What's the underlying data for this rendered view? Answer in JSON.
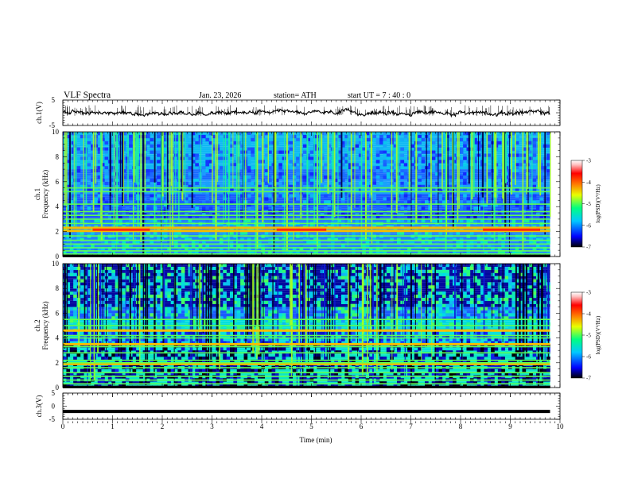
{
  "header": {
    "title": "VLF  Spectra",
    "date": "Jan. 23, 2026",
    "station": "station= ATH",
    "start": "start  UT  =    7 : 40 : 0"
  },
  "chart_data": [
    {
      "type": "line",
      "panel": "ch1-waveform",
      "ylabel": "ch.1(V)",
      "ylim": [
        -5,
        5
      ],
      "yticks": [
        "5",
        "-5"
      ],
      "xlim": [
        0,
        10
      ],
      "description_values": "noisy trace near 0 V with spikes up to ~+2.5 V and down to ~-1 V"
    },
    {
      "type": "heatmap",
      "panel": "ch1-spectrogram",
      "ylabel_top": "ch.1",
      "ylabel": "Frequency  (kHz)",
      "ylim": [
        0,
        10
      ],
      "yticks": [
        "0",
        "2",
        "4",
        "6",
        "8",
        "10"
      ],
      "xlim": [
        0,
        10
      ],
      "colorbar": {
        "label": "log(PSD)(V²/Hz)",
        "range": [
          -7,
          -3
        ],
        "ticks": [
          "-3",
          "-4",
          "-5",
          "-6",
          "-7"
        ]
      },
      "lines_khz": [
        0.2,
        0.45,
        0.7,
        1.0,
        1.3,
        1.65,
        2.05,
        2.3,
        2.65,
        3.0,
        3.3,
        3.6,
        4.2,
        5.2,
        5.5
      ],
      "strong_lines_khz": [
        2.05,
        2.3
      ],
      "red_segments_min": [
        [
          0.6,
          1.75
        ],
        [
          4.3,
          5.3
        ],
        [
          8.45,
          9.6
        ]
      ]
    },
    {
      "type": "heatmap",
      "panel": "ch2-spectrogram",
      "ylabel_top": "ch.2",
      "ylabel": "Frequency  (kHz)",
      "ylim": [
        0,
        10
      ],
      "yticks": [
        "0",
        "2",
        "4",
        "6",
        "8",
        "10"
      ],
      "xlim": [
        0,
        10
      ],
      "colorbar": {
        "label": "log(PSD)(V²/Hz)",
        "range": [
          -7,
          -3
        ],
        "ticks": [
          "-3",
          "-4",
          "-5",
          "-6",
          "-7"
        ]
      },
      "lines_khz": [
        0.3,
        0.6,
        0.9,
        1.2,
        1.6,
        1.9,
        2.0,
        2.2,
        2.8,
        3.3,
        3.5,
        4.0,
        4.2,
        4.6,
        5.0,
        5.5
      ],
      "strong_lines_khz": [
        1.9,
        2.1,
        3.5,
        4.6
      ]
    },
    {
      "type": "line",
      "panel": "ch3-waveform",
      "ylabel": "ch.3(V)",
      "ylim": [
        -5,
        5
      ],
      "yticks": [
        "5",
        "0",
        "-5"
      ],
      "xlim": [
        0,
        10
      ],
      "x": [
        0,
        9.8
      ],
      "y": [
        -2.0,
        -2.0
      ]
    }
  ],
  "xaxis": {
    "label": "Time  (min)",
    "ticks": [
      "0",
      "1",
      "2",
      "3",
      "4",
      "5",
      "6",
      "7",
      "8",
      "9",
      "10"
    ],
    "range": [
      0,
      10
    ],
    "data_end": 9.8
  },
  "colors": {
    "spectral": [
      "#000000",
      "#1a1aff",
      "#2aa8ff",
      "#00e0e0",
      "#3cff3c",
      "#ffff00",
      "#ff8000",
      "#ff0000",
      "#ffc8c8",
      "#ffffff"
    ]
  }
}
